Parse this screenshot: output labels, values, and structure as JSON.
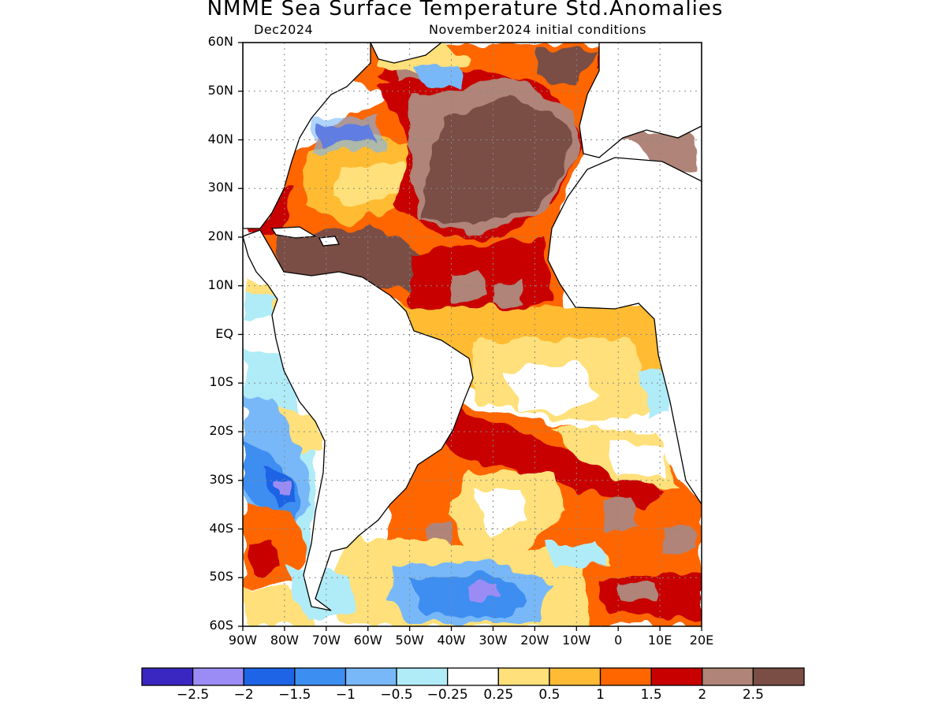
{
  "title": "NMME Sea Surface Temperature Std.Anomalies",
  "subtitle_left": "Dec2024",
  "subtitle_right": "November2024 initial conditions",
  "lat_ticks": [
    "60N",
    "50N",
    "40N",
    "30N",
    "20N",
    "10N",
    "EQ",
    "10S",
    "20S",
    "30S",
    "40S",
    "50S",
    "60S"
  ],
  "lon_ticks": [
    "90W",
    "80W",
    "70W",
    "60W",
    "50W",
    "40W",
    "30W",
    "20W",
    "10W",
    "0",
    "10E",
    "20E"
  ],
  "colorbar": {
    "colors": [
      "#3a27c2",
      "#9b8cf5",
      "#1e64e6",
      "#3c8ef0",
      "#78b8f8",
      "#b0ecf8",
      "#ffffff",
      "#ffe07a",
      "#ffbb33",
      "#ff6600",
      "#c80000",
      "#b08478",
      "#7a4e44"
    ],
    "labels": [
      "−2.5",
      "−2",
      "−1.5",
      "−1",
      "−0.5",
      "−0.25",
      "0.25",
      "0.5",
      "1",
      "1.5",
      "2",
      "2.5"
    ]
  },
  "chart_data": {
    "type": "heatmap",
    "title": "NMME Sea Surface Temperature Std.Anomalies",
    "subtitle": "Dec2024 — November2024 initial conditions",
    "lon_range": [
      -90,
      20
    ],
    "lat_range": [
      -60,
      60
    ],
    "color_levels": [
      -2.5,
      -2,
      -1.5,
      -1,
      -0.5,
      -0.25,
      0.25,
      0.5,
      1,
      1.5,
      2,
      2.5
    ],
    "grid": true,
    "regions": [
      {
        "lon": [
          -75,
          -60
        ],
        "lat": [
          38,
          42
        ],
        "value": -2.5
      },
      {
        "lon": [
          -57,
          -45
        ],
        "lat": [
          50,
          55
        ],
        "value": -0.5
      },
      {
        "lon": [
          -55,
          -10
        ],
        "lat": [
          22,
          52
        ],
        "value": 2.6
      },
      {
        "lon": [
          -82,
          -50
        ],
        "lat": [
          10,
          20
        ],
        "value": 2.6
      },
      {
        "lon": [
          -50,
          -15
        ],
        "lat": [
          5,
          20
        ],
        "value": 2.0
      },
      {
        "lon": [
          -45,
          8
        ],
        "lat": [
          -5,
          5
        ],
        "value": 1.0
      },
      {
        "lon": [
          -35,
          10
        ],
        "lat": [
          -20,
          -5
        ],
        "value": 0.5
      },
      {
        "lon": [
          -45,
          15
        ],
        "lat": [
          -35,
          -20
        ],
        "value": 2.0
      },
      {
        "lon": [
          -45,
          20
        ],
        "lat": [
          -45,
          -35
        ],
        "value": 1.5
      },
      {
        "lon": [
          -90,
          -72
        ],
        "lat": [
          -40,
          -15
        ],
        "value": -1.5
      },
      {
        "lon": [
          -90,
          -78
        ],
        "lat": [
          -50,
          -40
        ],
        "value": 2.0
      },
      {
        "lon": [
          -50,
          -15
        ],
        "lat": [
          -58,
          -50
        ],
        "value": -1.5
      },
      {
        "lon": [
          0,
          20
        ],
        "lat": [
          -60,
          -50
        ],
        "value": 2.5
      }
    ]
  }
}
